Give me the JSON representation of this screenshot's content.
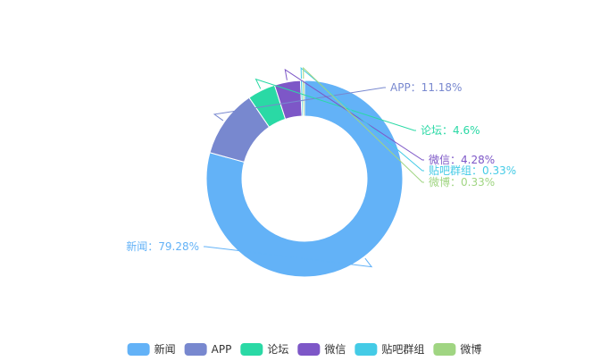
{
  "chart_data": {
    "type": "pie",
    "variant": "donut",
    "label_separator": "：",
    "legend_placement": "bottom-center",
    "slices": [
      {
        "name": "新闻",
        "value": 79.28,
        "label": "79.28%",
        "color": "#63b2f7"
      },
      {
        "name": "APP",
        "value": 11.18,
        "label": "11.18%",
        "color": "#7888cf"
      },
      {
        "name": "论坛",
        "value": 4.6,
        "label": "4.6%",
        "color": "#2ad9a5"
      },
      {
        "name": "微信",
        "value": 4.28,
        "label": "4.28%",
        "color": "#7d57c7"
      },
      {
        "name": "贴吧群组",
        "value": 0.33,
        "label": "0.33%",
        "color": "#44cbe6"
      },
      {
        "name": "微博",
        "value": 0.33,
        "label": "0.33%",
        "color": "#a0d582"
      }
    ]
  }
}
